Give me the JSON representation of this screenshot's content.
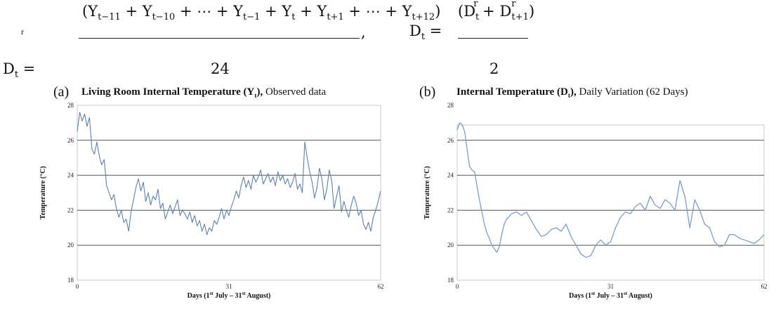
{
  "equations": {
    "eq1_numerator": "(Y_{t−11} + Y_{t−10} + ⋯ + Y_{t−1} + Y_t + Y_{t+1} + ⋯ + Y_{t+12})",
    "eq1_lhs_sup": "r",
    "eq1_lhs": "D_t =",
    "eq1_denominator": "24",
    "eq1_trailing": ",",
    "eq2_lhs": "D_t =",
    "eq2_numerator": "(D_t^r + D_{t+1}^r)",
    "eq2_denominator": "2"
  },
  "chart_data": [
    {
      "type": "line",
      "panel_label": "(a)",
      "title_bold": "Living Room Internal Temperature (Y",
      "title_bold_sub": "t",
      "title_bold_end": "),",
      "title_rest": " Observed data",
      "xlabel": "Days (1st July – 31st August)",
      "xlabel_parts": {
        "pre": "Days (1",
        "sup1": "st",
        "mid": " July – 31",
        "sup2": "st",
        "post": " August)"
      },
      "ylabel": "Temperature (°C)",
      "x_ticks": [
        0,
        31,
        62
      ],
      "y_ticks": [
        18,
        20,
        22,
        24,
        26,
        28
      ],
      "xlim": [
        0,
        62
      ],
      "ylim": [
        18,
        28
      ],
      "grid": "horizontal",
      "series": [
        {
          "color": "#5b7fb5",
          "x": [
            0,
            0.5,
            1,
            1.5,
            2,
            2.5,
            3,
            3.5,
            4,
            4.5,
            5,
            5.5,
            6,
            6.5,
            7,
            7.5,
            8,
            8.5,
            9,
            9.5,
            10,
            10.5,
            11,
            11.5,
            12,
            12.5,
            13,
            13.5,
            14,
            14.5,
            15,
            15.5,
            16,
            16.5,
            17,
            17.5,
            18,
            18.5,
            19,
            19.5,
            20,
            20.5,
            21,
            21.5,
            22,
            22.5,
            23,
            23.5,
            24,
            24.5,
            25,
            25.5,
            26,
            26.5,
            27,
            27.5,
            28,
            28.5,
            29,
            29.5,
            30,
            30.5,
            31,
            31.5,
            32,
            32.5,
            33,
            33.5,
            34,
            34.5,
            35,
            35.5,
            36,
            36.5,
            37,
            37.5,
            38,
            38.5,
            39,
            39.5,
            40,
            40.5,
            41,
            41.5,
            42,
            42.5,
            43,
            43.5,
            44,
            44.5,
            45,
            45.5,
            46,
            46.5,
            47,
            47.5,
            48,
            48.5,
            49,
            49.5,
            50,
            50.5,
            51,
            51.5,
            52,
            52.5,
            53,
            53.5,
            54,
            54.5,
            55,
            55.5,
            56,
            56.5,
            57,
            57.5,
            58,
            58.5,
            59,
            59.5,
            60,
            60.5,
            61,
            61.5,
            62
          ],
          "y": [
            26.5,
            27.6,
            27.1,
            27.5,
            26.8,
            27.3,
            25.5,
            25.2,
            25.9,
            25.1,
            24.6,
            24.9,
            23.4,
            23.0,
            22.6,
            22.9,
            22.1,
            21.6,
            22.0,
            21.3,
            21.5,
            20.8,
            21.9,
            22.6,
            23.3,
            23.8,
            23.1,
            23.6,
            22.5,
            23.0,
            22.3,
            22.8,
            22.6,
            23.2,
            22.1,
            22.4,
            21.5,
            21.9,
            22.3,
            21.8,
            22.2,
            22.6,
            21.7,
            22.0,
            21.8,
            21.5,
            21.9,
            21.3,
            21.7,
            21.1,
            21.4,
            20.8,
            21.2,
            20.6,
            21.0,
            20.8,
            21.4,
            21.2,
            21.6,
            22.1,
            21.5,
            22.0,
            21.7,
            22.2,
            22.6,
            23.1,
            22.7,
            23.4,
            23.9,
            23.3,
            23.7,
            23.2,
            24.0,
            23.6,
            23.9,
            24.3,
            23.5,
            23.8,
            24.1,
            23.6,
            23.9,
            23.4,
            24.2,
            23.7,
            24.0,
            23.5,
            23.8,
            23.3,
            23.6,
            24.1,
            23.2,
            23.5,
            23.0,
            25.9,
            25.0,
            24.2,
            23.6,
            22.7,
            23.3,
            24.4,
            23.8,
            22.6,
            23.2,
            24.3,
            23.7,
            22.1,
            22.8,
            23.4,
            21.9,
            22.5,
            22.0,
            21.6,
            22.3,
            22.8,
            22.4,
            21.7,
            22.0,
            21.2,
            20.9,
            21.3,
            20.8,
            21.6,
            22.0,
            22.5,
            23.1
          ]
        }
      ]
    },
    {
      "type": "line",
      "panel_label": "(b)",
      "title_bold": "Internal Temperature (D",
      "title_bold_sub": "t",
      "title_bold_end": "),",
      "title_rest": " Daily Variation (62 Days)",
      "xlabel": "Days (1st July – 31st August)",
      "xlabel_parts": {
        "pre": "Days (1",
        "sup1": "st",
        "mid": " July – 31",
        "sup2": "st",
        "post": " August)"
      },
      "ylabel": "Temperature (°C)",
      "x_ticks": [
        0,
        31,
        62
      ],
      "y_ticks": [
        18,
        20,
        22,
        24,
        26,
        28
      ],
      "xlim": [
        0,
        62
      ],
      "ylim": [
        18,
        28
      ],
      "grid": "horizontal",
      "series": [
        {
          "color": "#7a9ccc",
          "x": [
            0,
            0.5,
            1,
            1.5,
            2,
            2.5,
            3,
            3.5,
            4,
            4.5,
            5,
            5.5,
            6,
            6.5,
            7,
            7.5,
            8,
            8.5,
            9,
            9.5,
            10,
            11,
            12,
            13,
            14,
            15,
            16,
            17,
            18,
            19,
            20,
            21,
            22,
            23,
            24,
            25,
            26,
            27,
            28,
            29,
            30,
            31,
            32,
            33,
            34,
            35,
            36,
            37,
            38,
            39,
            40,
            41,
            42,
            43,
            44,
            45,
            46,
            47,
            48,
            49,
            50,
            51,
            52,
            53,
            54,
            55,
            56,
            57,
            58,
            59,
            60,
            61,
            62
          ],
          "y": [
            26.6,
            27.0,
            26.9,
            26.5,
            25.5,
            24.5,
            24.3,
            24.2,
            23.4,
            22.6,
            21.9,
            21.2,
            20.7,
            20.4,
            20.0,
            19.8,
            19.6,
            19.9,
            20.6,
            21.2,
            21.5,
            21.8,
            21.9,
            21.7,
            21.9,
            21.4,
            20.9,
            20.5,
            20.6,
            20.9,
            21.0,
            20.8,
            21.2,
            20.5,
            20.0,
            19.5,
            19.3,
            19.4,
            20.0,
            20.3,
            20.0,
            20.2,
            21.0,
            21.6,
            21.9,
            21.8,
            22.2,
            22.4,
            22.0,
            22.8,
            22.3,
            22.1,
            22.6,
            22.4,
            22.0,
            23.7,
            22.8,
            21.0,
            22.6,
            22.0,
            21.2,
            21.0,
            20.2,
            19.9,
            20.0,
            20.6,
            20.6,
            20.4,
            20.3,
            20.2,
            20.1,
            20.3,
            20.6
          ]
        }
      ]
    }
  ]
}
